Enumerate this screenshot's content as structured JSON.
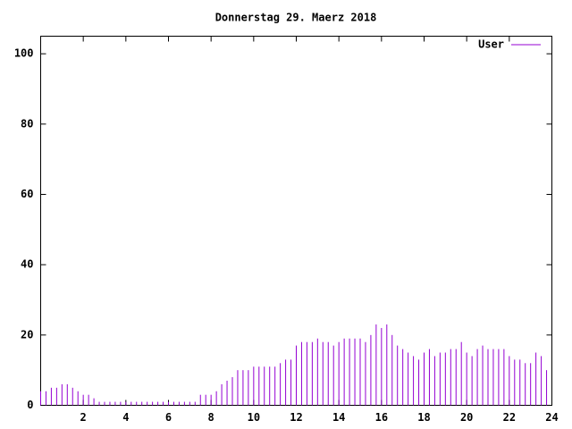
{
  "chart_data": {
    "type": "impulses",
    "title": "Donnerstag 29. Maerz 2018",
    "x": [
      0,
      0.25,
      0.5,
      0.75,
      1,
      1.25,
      1.5,
      1.75,
      2,
      2.25,
      2.5,
      2.75,
      3,
      3.25,
      3.5,
      3.75,
      4,
      4.25,
      4.5,
      4.75,
      5,
      5.25,
      5.5,
      5.75,
      6,
      6.25,
      6.5,
      6.75,
      7,
      7.25,
      7.5,
      7.75,
      8,
      8.25,
      8.5,
      8.75,
      9,
      9.25,
      9.5,
      9.75,
      10,
      10.25,
      10.5,
      10.75,
      11,
      11.25,
      11.5,
      11.75,
      12,
      12.25,
      12.5,
      12.75,
      13,
      13.25,
      13.5,
      13.75,
      14,
      14.25,
      14.5,
      14.75,
      15,
      15.25,
      15.5,
      15.75,
      16,
      16.25,
      16.5,
      16.75,
      17,
      17.25,
      17.5,
      17.75,
      18,
      18.25,
      18.5,
      18.75,
      19,
      19.25,
      19.5,
      19.75,
      20,
      20.25,
      20.5,
      20.75,
      21,
      21.25,
      21.5,
      21.75,
      22,
      22.25,
      22.5,
      22.75,
      23,
      23.25,
      23.5,
      23.75
    ],
    "series": [
      {
        "name": "User",
        "color": "#9400d3",
        "values": [
          4,
          4,
          5,
          5,
          6,
          6,
          5,
          4,
          3,
          3,
          2,
          1,
          1,
          1,
          1,
          1,
          1,
          1,
          1,
          1,
          1,
          1,
          1,
          1,
          1,
          1,
          1,
          1,
          1,
          1,
          3,
          3,
          3,
          4,
          6,
          7,
          8,
          10,
          10,
          10,
          11,
          11,
          11,
          11,
          11,
          12,
          13,
          13,
          17,
          18,
          18,
          18,
          19,
          18,
          18,
          17,
          18,
          19,
          19,
          19,
          19,
          18,
          20,
          23,
          22,
          23,
          20,
          17,
          16,
          15,
          14,
          13,
          15,
          16,
          14,
          15,
          15,
          16,
          16,
          18,
          15,
          14,
          16,
          17,
          16,
          16,
          16,
          16,
          14,
          13,
          13,
          12,
          12,
          15,
          14,
          10
        ]
      }
    ],
    "xlim": [
      0,
      24
    ],
    "xticks": [
      2,
      4,
      6,
      8,
      10,
      12,
      14,
      16,
      18,
      20,
      22,
      24
    ],
    "ylim": [
      0,
      105
    ],
    "yticks": [
      0,
      20,
      40,
      60,
      80,
      100
    ],
    "legend": "top-right"
  }
}
